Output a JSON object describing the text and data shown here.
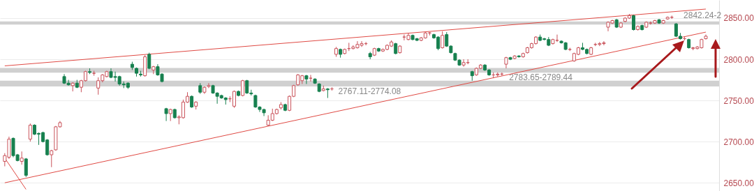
{
  "chart_data": {
    "type": "candlestick",
    "categories": [
      null,
      null,
      null,
      null,
      null,
      null,
      null,
      null,
      null,
      null,
      null,
      null,
      null,
      null,
      null,
      null,
      null,
      null,
      null,
      null,
      null,
      null,
      null,
      null,
      null,
      null,
      null,
      null,
      null,
      null,
      null,
      null,
      null,
      null,
      null,
      null,
      null,
      null,
      null,
      null,
      null,
      null,
      null,
      null,
      null,
      null,
      null,
      null,
      null,
      null,
      null,
      null,
      null,
      null,
      null,
      null,
      null,
      null,
      null,
      null,
      null,
      null,
      null,
      null,
      null,
      null,
      null,
      null,
      null,
      null,
      null,
      null,
      null,
      null,
      null,
      null,
      null,
      null,
      null,
      null,
      null,
      null,
      null,
      null,
      null,
      null,
      null,
      null,
      null,
      null,
      null,
      null,
      null,
      null,
      null,
      null,
      null,
      null,
      null,
      null,
      null,
      null,
      null,
      null,
      null,
      null,
      null,
      null,
      null,
      null,
      null,
      null,
      null,
      null,
      null,
      null,
      null,
      null,
      null,
      null,
      null,
      null,
      null,
      null,
      null,
      null,
      null,
      null,
      null,
      null,
      null,
      null,
      null,
      null,
      null,
      null,
      null,
      null,
      null,
      null,
      null,
      null,
      null,
      null,
      null,
      null,
      null,
      null,
      null,
      null,
      null,
      null,
      null,
      null,
      null,
      null,
      null,
      null,
      null,
      null,
      null,
      null,
      null,
      null,
      null,
      null
    ],
    "ohlc": [
      [
        2676,
        2686,
        2670,
        2683
      ],
      [
        2681,
        2706,
        2679,
        2703
      ],
      [
        2704,
        2705,
        2681,
        2683
      ],
      [
        2684,
        2685,
        2676,
        2677
      ],
      [
        2676,
        2688,
        2672,
        2680
      ],
      [
        2679,
        2680,
        2657,
        2659
      ],
      [
        2703,
        2722,
        2700,
        2720
      ],
      [
        2720,
        2721,
        2708,
        2709
      ],
      [
        2710,
        2711,
        2696,
        2709
      ],
      [
        2711,
        2712,
        2699,
        2700
      ],
      [
        2702,
        2703,
        2683,
        2684
      ],
      [
        2684,
        2690,
        2669,
        2689
      ],
      [
        2690,
        2719,
        2689,
        2718
      ],
      [
        2718,
        2725,
        2717,
        2723
      ],
      [
        2779,
        2782,
        2770,
        2771
      ],
      [
        2771,
        2775,
        2768,
        2769
      ],
      [
        2768,
        2772,
        2761,
        2771
      ],
      [
        2771,
        2775,
        2765,
        2766
      ],
      [
        2766,
        2775,
        2760,
        2774
      ],
      [
        2774,
        2786,
        2773,
        2785
      ],
      [
        2785,
        2789,
        2782,
        2784
      ],
      [
        2783,
        2786,
        2780,
        2783
      ],
      [
        2765,
        2778,
        2757,
        2774
      ],
      [
        2774,
        2782,
        2772,
        2781
      ],
      [
        2779,
        2786,
        2778,
        2785
      ],
      [
        2785,
        2789,
        2777,
        2778
      ],
      [
        2779,
        2785,
        2773,
        2778
      ],
      [
        2779,
        2780,
        2768,
        2770
      ],
      [
        2770,
        2773,
        2765,
        2769
      ],
      [
        2771,
        2772,
        2764,
        2766
      ],
      [
        2794,
        2797,
        2787,
        2790
      ],
      [
        2789,
        2790,
        2779,
        2783
      ],
      [
        2782,
        2786,
        2779,
        2781
      ],
      [
        2780,
        2805,
        2779,
        2803
      ],
      [
        2806,
        2808,
        2788,
        2789
      ],
      [
        2787,
        2792,
        2782,
        2791
      ],
      [
        2791,
        2794,
        2780,
        2781
      ],
      [
        2782,
        2783,
        2772,
        2773
      ],
      [
        2740,
        2741,
        2725,
        2734
      ],
      [
        2734,
        2740,
        2725,
        2739
      ],
      [
        2739,
        2740,
        2728,
        2729
      ],
      [
        2729,
        2732,
        2721,
        2730
      ],
      [
        2729,
        2751,
        2728,
        2748
      ],
      [
        2748,
        2760,
        2747,
        2755
      ],
      [
        2755,
        2756,
        2741,
        2742
      ],
      [
        2743,
        2749,
        2739,
        2748
      ],
      [
        2768,
        2771,
        2758,
        2760
      ],
      [
        2760,
        2767,
        2758,
        2766
      ],
      [
        2767,
        2771,
        2765,
        2768
      ],
      [
        2768,
        2769,
        2758,
        2759
      ],
      [
        2759,
        2760,
        2746,
        2755
      ],
      [
        2756,
        2757,
        2752,
        2753
      ],
      [
        2753,
        2754,
        2745,
        2751
      ],
      [
        2752,
        2755,
        2748,
        2752
      ],
      [
        2743,
        2762,
        2741,
        2761
      ],
      [
        2761,
        2762,
        2755,
        2756
      ],
      [
        2756,
        2775,
        2755,
        2774
      ],
      [
        2774,
        2775,
        2758,
        2759
      ],
      [
        2759,
        2763,
        2756,
        2758
      ],
      [
        2756,
        2757,
        2741,
        2742
      ],
      [
        2742,
        2743,
        2736,
        2739
      ],
      [
        2739,
        2740,
        2731,
        2735
      ],
      [
        2720,
        2732,
        2719,
        2726
      ],
      [
        2726,
        2740,
        2725,
        2734
      ],
      [
        2734,
        2740,
        2733,
        2739
      ],
      [
        2741,
        2748,
        2739,
        2745
      ],
      [
        2745,
        2746,
        2737,
        2738
      ],
      [
        2738,
        2756,
        2737,
        2755
      ],
      [
        2755,
        2769,
        2754,
        2768
      ],
      [
        2769,
        2782,
        2768,
        2781
      ],
      [
        2774,
        2781,
        2770,
        2780
      ],
      [
        2780,
        2781,
        2770,
        2776
      ],
      [
        2777,
        2781,
        2773,
        2777
      ],
      [
        2776,
        2777,
        2770,
        2771
      ],
      [
        2770,
        2771,
        2760,
        2761
      ],
      [
        2762,
        2768,
        2761,
        2764
      ],
      [
        2764,
        2765,
        2753,
        2763
      ],
      [
        2764,
        2766,
        2762,
        2764
      ],
      [
        2806,
        2815,
        2803,
        2813
      ],
      [
        2812,
        2813,
        2802,
        2806
      ],
      [
        2807,
        2813,
        2806,
        2812
      ],
      [
        2813,
        2820,
        2810,
        2813
      ],
      [
        2813,
        2817,
        2812,
        2815
      ],
      [
        2814,
        2822,
        2813,
        2818
      ],
      [
        2817,
        2822,
        2815,
        2819
      ],
      [
        2819,
        2821,
        2817,
        2819
      ],
      [
        2807,
        2809,
        2800,
        2803
      ],
      [
        2805,
        2814,
        2804,
        2813
      ],
      [
        2813,
        2814,
        2809,
        2810
      ],
      [
        2810,
        2813,
        2809,
        2812
      ],
      [
        2812,
        2818,
        2811,
        2817
      ],
      [
        2816,
        2823,
        2815,
        2821
      ],
      [
        2819,
        2820,
        2806,
        2807
      ],
      [
        2808,
        2817,
        2807,
        2816
      ],
      [
        2827,
        2830,
        2823,
        2827
      ],
      [
        2824,
        2832,
        2823,
        2829
      ],
      [
        2829,
        2830,
        2823,
        2824
      ],
      [
        2825,
        2826,
        2822,
        2823
      ],
      [
        2823,
        2827,
        2822,
        2826
      ],
      [
        2826,
        2833,
        2825,
        2832
      ],
      [
        2832,
        2833,
        2829,
        2832
      ],
      [
        2830,
        2831,
        2825,
        2826
      ],
      [
        2827,
        2828,
        2811,
        2813
      ],
      [
        2814,
        2834,
        2813,
        2829
      ],
      [
        2830,
        2833,
        2815,
        2816
      ],
      [
        2816,
        2817,
        2807,
        2808
      ],
      [
        2807,
        2808,
        2798,
        2799
      ],
      [
        2799,
        2800,
        2792,
        2793
      ],
      [
        2793,
        2800,
        2791,
        2796
      ],
      [
        2796,
        2800,
        2794,
        2796
      ],
      [
        2785,
        2786,
        2774,
        2780
      ],
      [
        2781,
        2790,
        2780,
        2789
      ],
      [
        2789,
        2794,
        2788,
        2793
      ],
      [
        2793,
        2794,
        2786,
        2787
      ],
      [
        2787,
        2788,
        2780,
        2781
      ],
      [
        2781,
        2784,
        2777,
        2781
      ],
      [
        2781,
        2784,
        2779,
        2782
      ],
      [
        2782,
        2784,
        2780,
        2782
      ],
      [
        2794,
        2803,
        2789,
        2802
      ],
      [
        2802,
        2803,
        2799,
        2800
      ],
      [
        2801,
        2805,
        2800,
        2804
      ],
      [
        2804,
        2805,
        2802,
        2803
      ],
      [
        2803,
        2808,
        2802,
        2807
      ],
      [
        2808,
        2815,
        2807,
        2814
      ],
      [
        2814,
        2820,
        2813,
        2819
      ],
      [
        2819,
        2828,
        2818,
        2827
      ],
      [
        2827,
        2830,
        2822,
        2823
      ],
      [
        2825,
        2826,
        2823,
        2824
      ],
      [
        2824,
        2827,
        2816,
        2817
      ],
      [
        2819,
        2825,
        2818,
        2824
      ],
      [
        2823,
        2830,
        2821,
        2823
      ],
      [
        2822,
        2823,
        2819,
        2820
      ],
      [
        2820,
        2821,
        2811,
        2812
      ],
      [
        2812,
        2814,
        2810,
        2812
      ],
      [
        2798,
        2808,
        2797,
        2807
      ],
      [
        2806,
        2815,
        2805,
        2814
      ],
      [
        2814,
        2820,
        2811,
        2812
      ],
      [
        2812,
        2813,
        2806,
        2807
      ],
      [
        2806,
        2815,
        2805,
        2814
      ],
      [
        2818,
        2820,
        2816,
        2818
      ],
      [
        2818,
        2821,
        2816,
        2819
      ],
      [
        2819,
        2822,
        2817,
        2820
      ],
      [
        2839,
        2846,
        2834,
        2845
      ],
      [
        2844,
        2848,
        2843,
        2847
      ],
      [
        2848,
        2849,
        2838,
        2839
      ],
      [
        2839,
        2845,
        2838,
        2844
      ],
      [
        2846,
        2851,
        2845,
        2850
      ],
      [
        2850,
        2855,
        2849,
        2853
      ],
      [
        2853,
        2854,
        2835,
        2836
      ],
      [
        2836,
        2841,
        2835,
        2840
      ],
      [
        2841,
        2842,
        2835,
        2836
      ],
      [
        2839,
        2846,
        2838,
        2845
      ],
      [
        2844,
        2846,
        2842,
        2844
      ],
      [
        2844,
        2848,
        2843,
        2847
      ],
      [
        2848,
        2849,
        2843,
        2844
      ],
      [
        2844,
        2848,
        2843,
        2847
      ],
      [
        2849,
        2852,
        2848,
        2851
      ],
      [
        2851,
        2853,
        2849,
        2851
      ],
      [
        2843,
        2844,
        2827,
        2828
      ],
      [
        2828,
        2832,
        2824,
        2825
      ],
      [
        2825,
        2828,
        2823,
        2825
      ],
      [
        2824,
        2825,
        2813,
        2814
      ],
      [
        2813,
        2815,
        2811,
        2814
      ],
      [
        2813,
        2816,
        2812,
        2815
      ],
      [
        2814,
        2825,
        2813,
        2824
      ],
      [
        2825,
        2830,
        2824,
        2828
      ]
    ],
    "series": [
      {
        "type": "line",
        "color": "#e04a44",
        "values": [
          2792,
          null,
          null,
          null,
          null,
          null,
          null,
          null,
          null,
          null,
          null,
          null,
          null,
          null,
          null,
          null,
          null,
          null,
          null,
          null,
          null,
          null,
          null,
          null,
          null,
          null,
          null,
          null,
          null,
          null,
          null,
          null,
          null,
          null,
          null,
          null,
          null,
          null,
          null,
          null,
          null,
          null,
          null,
          null,
          null,
          null,
          null,
          null,
          null,
          null,
          null,
          null,
          null,
          null,
          null,
          null,
          null,
          null,
          null,
          null,
          null,
          null,
          null,
          null,
          null,
          null,
          null,
          null,
          null,
          null,
          null,
          null,
          null,
          null,
          null,
          null,
          null,
          null,
          null,
          null,
          null,
          null,
          null,
          null,
          null,
          null,
          null,
          null,
          null,
          null,
          null,
          null,
          null,
          null,
          null,
          null,
          null,
          null,
          null,
          null,
          null,
          null,
          null,
          null,
          null,
          null,
          null,
          null,
          null,
          null,
          null,
          null,
          null,
          null,
          null,
          null,
          null,
          null,
          null,
          null,
          null,
          null,
          null,
          null,
          null,
          null,
          null,
          null,
          null,
          null,
          null,
          null,
          null,
          null,
          null,
          null,
          null,
          null,
          null,
          null,
          null,
          null,
          null,
          null,
          null,
          null,
          null,
          null,
          null,
          null,
          null,
          null,
          null,
          null,
          null,
          null,
          null,
          null,
          null,
          null,
          null,
          null,
          null,
          null,
          null,
          2861
        ]
      },
      {
        "type": "line",
        "color": "#e04a44",
        "values": [
          2650,
          null,
          null,
          null,
          null,
          null,
          null,
          null,
          null,
          null,
          null,
          null,
          null,
          null,
          null,
          null,
          null,
          null,
          null,
          null,
          null,
          null,
          null,
          null,
          null,
          null,
          null,
          null,
          null,
          null,
          null,
          null,
          null,
          null,
          null,
          null,
          null,
          null,
          null,
          null,
          null,
          null,
          null,
          null,
          null,
          null,
          null,
          null,
          null,
          null,
          null,
          null,
          null,
          null,
          null,
          null,
          null,
          null,
          null,
          null,
          null,
          null,
          null,
          null,
          null,
          null,
          null,
          null,
          null,
          null,
          null,
          null,
          null,
          null,
          null,
          null,
          null,
          null,
          null,
          null,
          null,
          null,
          null,
          null,
          null,
          null,
          null,
          null,
          null,
          null,
          null,
          null,
          null,
          null,
          null,
          null,
          null,
          null,
          null,
          null,
          null,
          null,
          null,
          null,
          null,
          null,
          null,
          null,
          null,
          null,
          null,
          null,
          null,
          null,
          null,
          null,
          null,
          null,
          null,
          null,
          null,
          null,
          null,
          null,
          null,
          null,
          null,
          null,
          null,
          null,
          null,
          null,
          null,
          null,
          null,
          null,
          null,
          null,
          null,
          null,
          null,
          null,
          null,
          null,
          null,
          null,
          null,
          null,
          null,
          null,
          null,
          null,
          null,
          null,
          null,
          null,
          null,
          null,
          null,
          null,
          null,
          null,
          null,
          null,
          null,
          2833
        ]
      },
      {
        "type": "line",
        "color": "#e04a44",
        "values": [
          2680,
          null,
          null,
          null,
          null,
          2642,
          null,
          null,
          null,
          null,
          null,
          null,
          null,
          null,
          null,
          null,
          null,
          null,
          null,
          null,
          null,
          null,
          null,
          null,
          null,
          null,
          null,
          null,
          null,
          null,
          null,
          null,
          null,
          null,
          null,
          null,
          null,
          null,
          null,
          null,
          null,
          null,
          null,
          null,
          null,
          null,
          null,
          null,
          null,
          null,
          null,
          null,
          null,
          null,
          null,
          null,
          null,
          null,
          null,
          null,
          null,
          null,
          null,
          null,
          null,
          null,
          null,
          null,
          null,
          null,
          null,
          null,
          null,
          null,
          null,
          null,
          null,
          null,
          null,
          null,
          null,
          null,
          null,
          null,
          null,
          null,
          null,
          null,
          null,
          null,
          null,
          null,
          null,
          null,
          null,
          null,
          null,
          null,
          null,
          null,
          null,
          null,
          null,
          null,
          null,
          null,
          null,
          null,
          null,
          null,
          null,
          null,
          null,
          null,
          null,
          null,
          null,
          null,
          null,
          null,
          null,
          null,
          null,
          null,
          null,
          null,
          null,
          null,
          null,
          null,
          null,
          null,
          null,
          null,
          null,
          null,
          null,
          null,
          null,
          null,
          null,
          null,
          null,
          null,
          null,
          null,
          null,
          null,
          null,
          null,
          null,
          null,
          null,
          null,
          null,
          null,
          null,
          null,
          null,
          null,
          null,
          null,
          null,
          null,
          null,
          null
        ]
      }
    ],
    "bands": [
      {
        "axis": "y",
        "from": 2767.11,
        "to": 2774.08,
        "label": "2767.11-2774.08",
        "color": "#c8c8c8"
      },
      {
        "axis": "y",
        "from": 2783.65,
        "to": 2789.44,
        "label": "2783.65-2789.44",
        "color": "#c8c8c8"
      },
      {
        "axis": "y",
        "from": 2842.24,
        "to": 2846,
        "label": "2842.24-2",
        "color": "#c8c8c8"
      }
    ],
    "ylim": [
      2640,
      2872
    ],
    "yticks": [
      {
        "value": 2650,
        "label": "2650.00"
      },
      {
        "value": 2700,
        "label": "2700.00"
      },
      {
        "value": 2750,
        "label": "2750.00"
      },
      {
        "value": 2800,
        "label": "2800.00"
      },
      {
        "value": 2850,
        "label": "2850.00"
      }
    ],
    "grid": "y"
  }
}
